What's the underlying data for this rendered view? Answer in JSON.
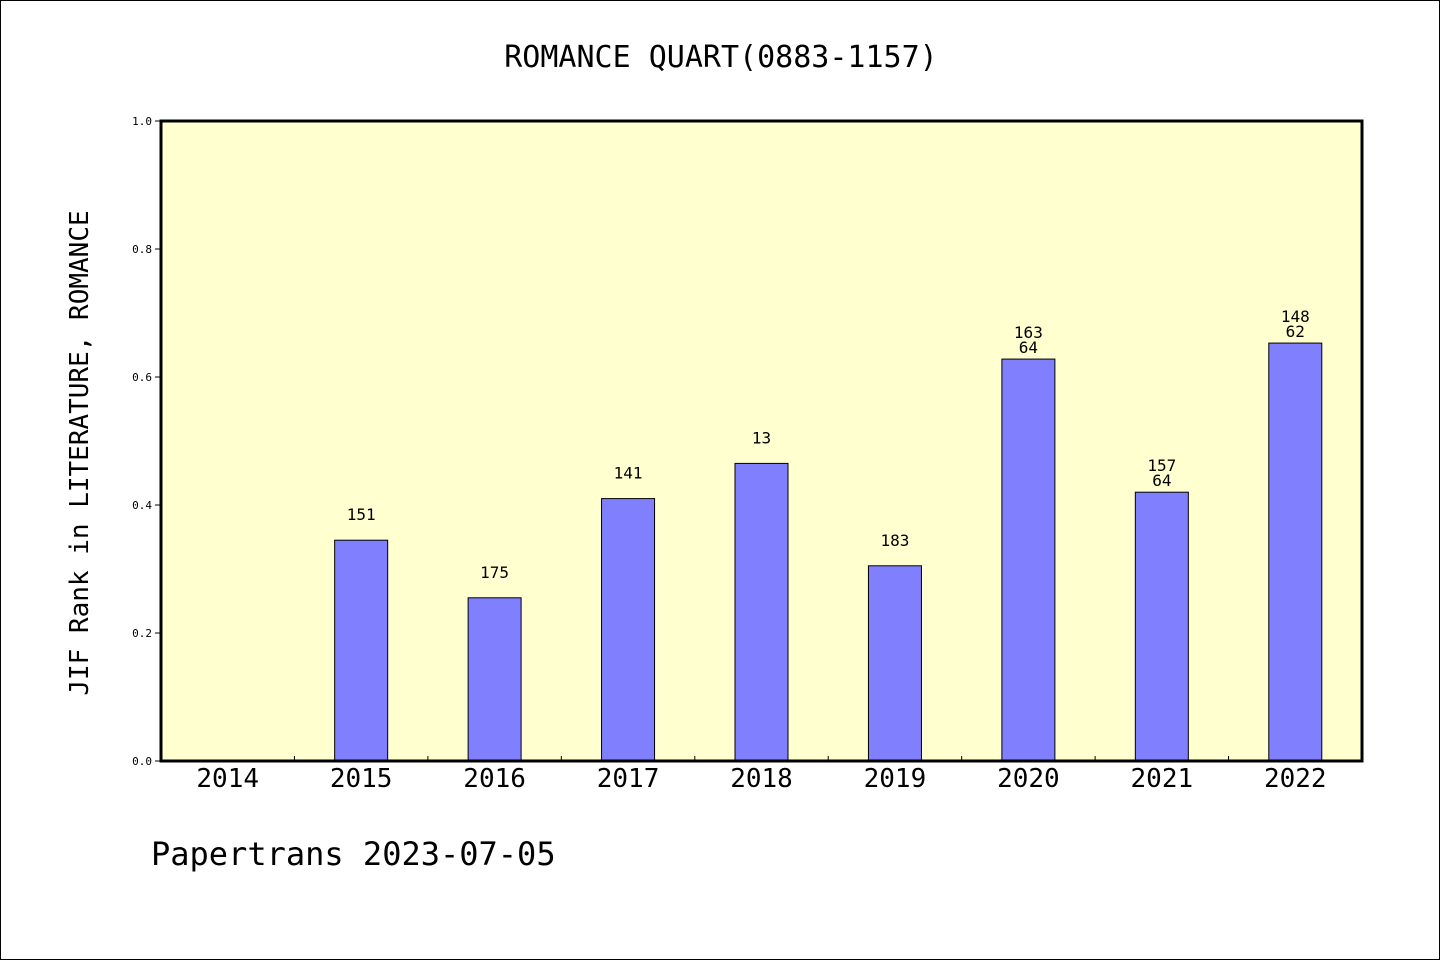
{
  "chart_data": {
    "type": "bar",
    "title": "ROMANCE QUART(0883-1157)",
    "ylabel": "JIF Rank in LITERATURE, ROMANCE",
    "xlabel": "",
    "ylim": [
      0,
      1.0
    ],
    "yticks": [
      "0.0",
      "0.2",
      "0.4",
      "0.6",
      "0.8",
      "1.0"
    ],
    "ytick_values": [
      0,
      0.2,
      0.4,
      0.6,
      0.8,
      1.0
    ],
    "categories": [
      "2014",
      "2015",
      "2016",
      "2017",
      "2018",
      "2019",
      "2020",
      "2021",
      "2022"
    ],
    "values": [
      null,
      0.345,
      0.255,
      0.41,
      0.465,
      0.305,
      0.628,
      0.42,
      0.653
    ],
    "labels": [
      [],
      [
        "151"
      ],
      [
        "175"
      ],
      [
        "141"
      ],
      [
        "13"
      ],
      [
        "183"
      ],
      [
        "163",
        "64"
      ],
      [
        "157",
        "64"
      ],
      [
        "148",
        "62"
      ]
    ],
    "grid": false,
    "colors": {
      "plot_background": "#ffffd0",
      "bar_fill": "#8080ff",
      "bar_stroke": "#000000",
      "axis": "#000000"
    }
  },
  "footer": {
    "watermark": "Papertrans 2023-07-05"
  }
}
